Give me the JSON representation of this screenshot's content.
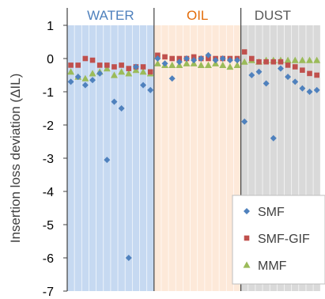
{
  "chart_data": {
    "type": "scatter",
    "ylabel": "Insertion loss deviation (ΔIL)",
    "ylim": [
      -7,
      1
    ],
    "yticks": [
      1,
      0,
      -1,
      -2,
      -3,
      -4,
      -5,
      -6,
      -7
    ],
    "x_points": 35,
    "grid": "vertical",
    "regions": [
      {
        "label": "WATER",
        "start": 0.5,
        "end": 12.5,
        "fill": "#c6d9f1",
        "text_color": "#4f81bd"
      },
      {
        "label": "OIL",
        "start": 12.5,
        "end": 24.5,
        "fill": "#fde9d9",
        "text_color": "#e36c09"
      },
      {
        "label": "DUST",
        "start": 24.5,
        "end": 35.5,
        "fill": "#d9d9d9",
        "text_color": "#595959"
      }
    ],
    "series": [
      {
        "name": "SMF",
        "marker": "diamond",
        "color": "#4f81bd",
        "x": [
          1,
          2,
          3,
          4,
          5,
          6,
          7,
          8,
          9,
          10,
          11,
          12,
          13,
          14,
          15,
          16,
          17,
          18,
          19,
          20,
          21,
          22,
          23,
          24,
          25,
          26,
          27,
          28,
          29,
          30,
          31,
          32,
          33,
          34,
          35
        ],
        "y": [
          -0.7,
          -0.55,
          -0.8,
          -0.65,
          -0.45,
          -3.05,
          -1.3,
          -1.5,
          -6.0,
          -0.25,
          -0.8,
          -0.95,
          0.0,
          -0.15,
          -0.6,
          -0.1,
          0.0,
          -0.05,
          0.0,
          0.1,
          -0.05,
          0.0,
          -0.05,
          -0.05,
          -1.9,
          -0.5,
          -0.4,
          -0.75,
          -2.4,
          -0.3,
          -0.55,
          -0.7,
          -0.9,
          -1.0,
          -0.95
        ]
      },
      {
        "name": "SMF-GIF",
        "marker": "square",
        "color": "#c0504d",
        "x": [
          1,
          2,
          3,
          4,
          5,
          6,
          7,
          8,
          9,
          10,
          11,
          12,
          13,
          14,
          15,
          16,
          17,
          18,
          19,
          20,
          21,
          22,
          23,
          24,
          25,
          26,
          27,
          28,
          29,
          30,
          31,
          32,
          33,
          34,
          35
        ],
        "y": [
          -0.2,
          -0.2,
          0.0,
          -0.05,
          -0.2,
          -0.2,
          -0.25,
          -0.2,
          -0.3,
          -0.25,
          -0.25,
          -0.4,
          0.1,
          0.05,
          0.0,
          0.0,
          0.0,
          0.05,
          0.0,
          0.0,
          0.0,
          0.0,
          0.0,
          0.0,
          0.2,
          0.0,
          -0.1,
          -0.1,
          -0.1,
          -0.1,
          -0.2,
          -0.25,
          -0.35,
          -0.45,
          -0.5
        ]
      },
      {
        "name": "MMF",
        "marker": "triangle",
        "color": "#9bbb59",
        "x": [
          1,
          2,
          3,
          4,
          5,
          6,
          7,
          8,
          9,
          10,
          11,
          12,
          13,
          14,
          15,
          16,
          17,
          18,
          19,
          20,
          21,
          22,
          23,
          24,
          25,
          26,
          27,
          28,
          29,
          30,
          31,
          32,
          33,
          34,
          35
        ],
        "y": [
          -0.4,
          -0.55,
          -0.6,
          -0.45,
          -0.4,
          -0.3,
          -0.5,
          -0.4,
          -0.45,
          -0.35,
          -0.4,
          -0.45,
          -0.15,
          -0.2,
          -0.2,
          -0.2,
          -0.15,
          -0.15,
          -0.2,
          -0.2,
          -0.15,
          -0.2,
          -0.25,
          -0.2,
          -0.1,
          -0.05,
          -0.1,
          -0.05,
          -0.05,
          -0.05,
          -0.05,
          -0.05,
          -0.05,
          -0.05,
          -0.05
        ]
      }
    ],
    "legend": "bottom-right"
  }
}
